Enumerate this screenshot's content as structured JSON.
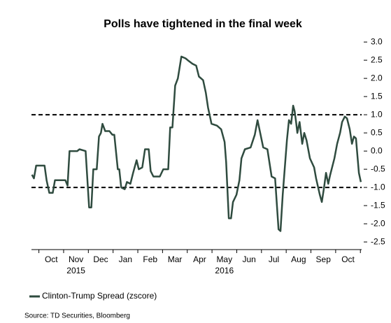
{
  "chart_data": {
    "type": "line",
    "title": "Polls have tightened in the final week",
    "source": "Source: TD Securities, Bloomberg",
    "categories": [
      "Oct",
      "Nov",
      "Dec",
      "Jan",
      "Feb",
      "Mar",
      "Apr",
      "May",
      "Jun",
      "Jul",
      "Aug",
      "Sep",
      "Oct"
    ],
    "years": [
      {
        "label": "2015",
        "category": 1
      },
      {
        "label": "2016",
        "category": 7
      }
    ],
    "xlim": [
      -0.3,
      13.05
    ],
    "xticks": [
      0,
      1,
      2,
      3,
      4,
      5,
      6,
      7,
      8,
      9,
      10,
      11,
      12,
      13
    ],
    "ylim": [
      -2.71,
      3.06
    ],
    "yticks": [
      {
        "value": 3,
        "label": "3.0"
      },
      2.5,
      {
        "value": 2,
        "label": "2.0"
      },
      1.5,
      {
        "value": 1,
        "label": "1.0"
      },
      0.5,
      {
        "value": 0,
        "label": "0.0"
      },
      -0.5,
      {
        "value": -1,
        "label": "-1.0"
      },
      -1.5,
      {
        "value": -2,
        "label": "-2.0"
      },
      -2.5
    ],
    "reference_lines": [
      1,
      -1
    ],
    "x": [
      -0.28,
      -0.2,
      -0.11,
      0.23,
      0.31,
      0.42,
      0.56,
      0.65,
      1.07,
      1.16,
      1.24,
      1.55,
      1.64,
      1.89,
      2.03,
      2.12,
      2.2,
      2.34,
      2.43,
      2.51,
      2.57,
      2.68,
      2.85,
      2.97,
      3.05,
      3.19,
      3.25,
      3.33,
      3.47,
      3.56,
      3.7,
      3.81,
      3.95,
      4.04,
      4.18,
      4.29,
      4.44,
      4.52,
      4.63,
      4.89,
      5.03,
      5.23,
      5.31,
      5.4,
      5.51,
      5.62,
      5.68,
      5.76,
      5.93,
      6.02,
      6.21,
      6.36,
      6.47,
      6.64,
      6.75,
      6.84,
      6.98,
      7.2,
      7.37,
      7.51,
      7.57,
      7.68,
      7.77,
      7.85,
      7.99,
      8.11,
      8.19,
      8.33,
      8.56,
      8.73,
      8.84,
      8.95,
      9.07,
      9.24,
      9.41,
      9.55,
      9.69,
      9.77,
      9.86,
      10.03,
      10.11,
      10.2,
      10.28,
      10.34,
      10.4,
      10.45,
      10.54,
      10.65,
      10.73,
      10.82,
      10.96,
      11.13,
      11.21,
      11.36,
      11.44,
      11.53,
      11.61,
      11.7,
      11.78,
      11.95,
      12.06,
      12.18,
      12.26,
      12.37,
      12.46,
      12.57,
      12.66,
      12.74,
      12.82,
      12.94,
      13.02
    ],
    "series": [
      {
        "name": "Clinton-Trump Spread (zscore)",
        "color": "#2f4b3f",
        "values": [
          -0.65,
          -0.75,
          -0.4,
          -0.4,
          -0.8,
          -1.15,
          -1.15,
          -0.8,
          -0.8,
          -0.95,
          0.0,
          0.0,
          0.05,
          0.0,
          -1.55,
          -1.55,
          -0.5,
          -0.5,
          0.4,
          0.5,
          0.75,
          0.55,
          0.55,
          0.45,
          0.45,
          -0.5,
          -0.5,
          -1.0,
          -1.05,
          -0.85,
          -0.9,
          -0.6,
          -0.25,
          -0.5,
          -0.45,
          0.05,
          0.05,
          -0.55,
          -0.7,
          -0.7,
          -0.5,
          -0.5,
          0.65,
          0.65,
          1.8,
          2.0,
          2.25,
          2.6,
          2.55,
          2.5,
          2.4,
          2.35,
          2.05,
          1.95,
          1.6,
          1.2,
          0.75,
          0.7,
          0.6,
          0.25,
          -0.3,
          -1.85,
          -1.85,
          -1.4,
          -1.2,
          -0.8,
          -0.2,
          0.05,
          0.1,
          0.45,
          0.85,
          0.5,
          0.1,
          0.05,
          -0.7,
          -0.75,
          -2.15,
          -2.2,
          -1.2,
          0.3,
          0.85,
          0.75,
          1.25,
          1.1,
          0.8,
          0.5,
          0.8,
          0.2,
          0.5,
          0.3,
          -0.2,
          -0.45,
          -0.75,
          -1.2,
          -1.4,
          -1.0,
          -0.6,
          -0.9,
          -0.65,
          -0.2,
          0.2,
          0.5,
          0.8,
          0.95,
          0.9,
          0.6,
          0.2,
          0.4,
          0.35,
          -0.6,
          -0.85
        ]
      }
    ]
  }
}
